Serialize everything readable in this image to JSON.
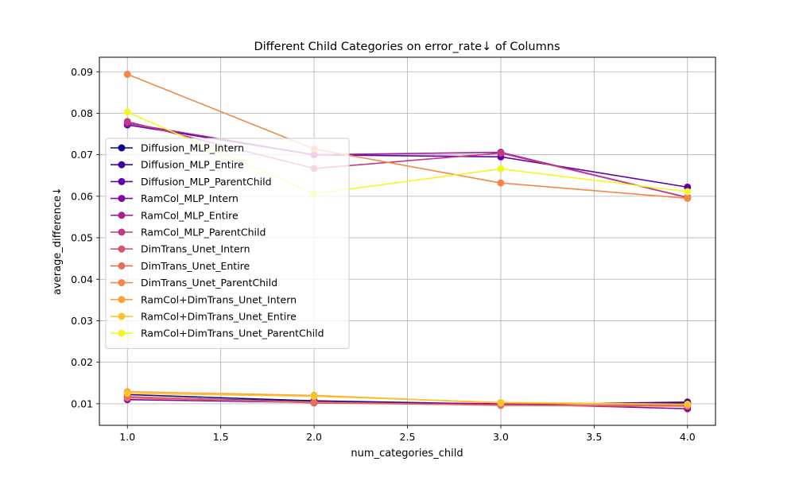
{
  "chart_data": {
    "type": "line",
    "title": "Different Child Categories on error_rate↓ of Columns",
    "xlabel": "num_categories_child",
    "ylabel": "average_difference↓",
    "xlim": [
      0.85,
      4.15
    ],
    "ylim": [
      0.0048,
      0.0935
    ],
    "x_ticks": [
      1.0,
      1.5,
      2.0,
      2.5,
      3.0,
      3.5,
      4.0
    ],
    "x_tick_labels": [
      "1.0",
      "1.5",
      "2.0",
      "2.5",
      "3.0",
      "3.5",
      "4.0"
    ],
    "y_ticks": [
      0.01,
      0.02,
      0.03,
      0.04,
      0.05,
      0.06,
      0.07,
      0.08,
      0.09
    ],
    "y_tick_labels": [
      "0.01",
      "0.02",
      "0.03",
      "0.04",
      "0.05",
      "0.06",
      "0.07",
      "0.08",
      "0.09"
    ],
    "grid": true,
    "legend_position": "center-left",
    "x": [
      1.0,
      2.0,
      3.0,
      4.0
    ],
    "series": [
      {
        "name": "Diffusion_MLP_Intern",
        "color": "#0d0887",
        "values": [
          0.0122,
          0.0107,
          0.0099,
          0.0102
        ]
      },
      {
        "name": "Diffusion_MLP_Entire",
        "color": "#3e049c",
        "values": [
          0.0116,
          0.0105,
          0.0098,
          0.0104
        ]
      },
      {
        "name": "Diffusion_MLP_ParentChild",
        "color": "#6300a7",
        "values": [
          0.0772,
          0.07,
          0.0695,
          0.0622
        ]
      },
      {
        "name": "RamCol_MLP_Intern",
        "color": "#8606a6",
        "values": [
          0.011,
          0.0103,
          0.01,
          0.0088
        ]
      },
      {
        "name": "RamCol_MLP_Entire",
        "color": "#a62098",
        "values": [
          0.0776,
          0.07,
          0.0706,
          0.0597
        ]
      },
      {
        "name": "RamCol_MLP_ParentChild",
        "color": "#c03a83",
        "values": [
          0.078,
          0.0667,
          0.0704,
          0.0597
        ]
      },
      {
        "name": "DimTrans_Unet_Intern",
        "color": "#d5546e",
        "values": [
          0.0117,
          0.0102,
          0.0097,
          0.0096
        ]
      },
      {
        "name": "DimTrans_Unet_Entire",
        "color": "#e76e5b",
        "values": [
          0.0114,
          0.0104,
          0.0096,
          0.0094
        ]
      },
      {
        "name": "DimTrans_Unet_ParentChild",
        "color": "#f48849",
        "values": [
          0.0894,
          0.0714,
          0.0632,
          0.0595
        ]
      },
      {
        "name": "RamCol+DimTrans_Unet_Intern",
        "color": "#fba238",
        "values": [
          0.0129,
          0.012,
          0.0102,
          0.0098
        ]
      },
      {
        "name": "RamCol+DimTrans_Unet_Entire",
        "color": "#fcc429",
        "values": [
          0.0125,
          0.0118,
          0.0103,
          0.0099
        ]
      },
      {
        "name": "RamCol+DimTrans_Unet_ParentChild",
        "color": "#f0f921",
        "values": [
          0.0803,
          0.0606,
          0.0666,
          0.0611
        ]
      }
    ]
  }
}
